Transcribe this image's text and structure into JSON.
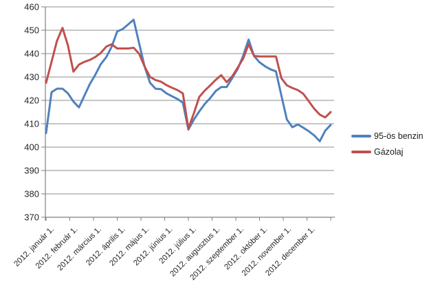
{
  "chart_data": {
    "type": "line",
    "title": "",
    "grid": true,
    "legend_position": "right",
    "ylim": [
      370,
      460
    ],
    "y_ticks": [
      370,
      380,
      390,
      400,
      410,
      420,
      430,
      440,
      450,
      460
    ],
    "x_tick_labels": [
      "2012. január 1.",
      "2012. február 1.",
      "2012. március 1.",
      "2012. április 1.",
      "2012. május 1.",
      "2012. június 1.",
      "2012. július 1.",
      "2012. augusztus 1.",
      "2012. szeptember 1.",
      "2012. október 1.",
      "2012. november 1.",
      "2012. december 1."
    ],
    "colors": {
      "benzin": "#4F81BD",
      "gazolaj": "#C0504D",
      "gridline": "#8C8C8C",
      "axis": "#7F7F7F",
      "text": "#262626"
    },
    "series": [
      {
        "name": "95-ös benzin",
        "color": "#4F81BD",
        "values": [
          406,
          423.5,
          425,
          425,
          423,
          419.5,
          417,
          422,
          427,
          431,
          435.5,
          438.5,
          443,
          449.5,
          450.5,
          452.5,
          454.5,
          444.5,
          434.5,
          427.5,
          425,
          424.8,
          423,
          421.8,
          420.6,
          419,
          407.5,
          411.8,
          415.3,
          418.5,
          421,
          424,
          425.7,
          425.7,
          429.5,
          433.4,
          439,
          446,
          439,
          436.3,
          434.6,
          433.3,
          432.4,
          422,
          411.8,
          408.5,
          409.7,
          408.3,
          406.8,
          405,
          402.5,
          407,
          409.5
        ]
      },
      {
        "name": "Gázolaj",
        "color": "#C0504D",
        "values": [
          427.5,
          436.5,
          445.5,
          451,
          443.5,
          432.3,
          435.3,
          436.5,
          437.3,
          438.6,
          440.3,
          443,
          444,
          442.2,
          442.2,
          442.2,
          442.5,
          440,
          434.5,
          430,
          428.7,
          428,
          426.5,
          425.4,
          424.4,
          423,
          408,
          414.5,
          421.5,
          424.2,
          426.4,
          428.8,
          430.8,
          427.8,
          430.3,
          434,
          437.8,
          444,
          439,
          438.8,
          438.8,
          438.8,
          438.8,
          429.5,
          426.4,
          425.3,
          424.4,
          422.8,
          419.6,
          416.4,
          413.9,
          412.7,
          415
        ]
      }
    ]
  }
}
